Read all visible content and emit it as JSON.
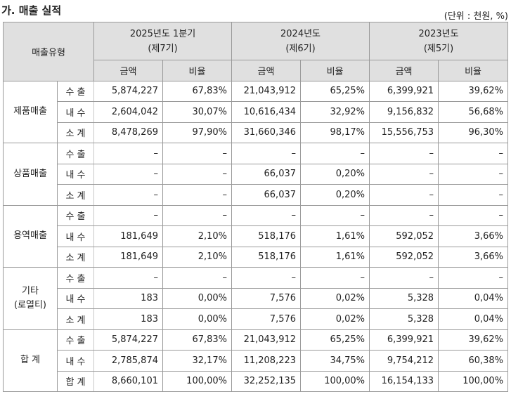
{
  "title": "가. 매출 실적",
  "unit": "(단위 : 천원, %)",
  "header": {
    "type_label": "매출유형",
    "periods": [
      {
        "line1": "2025년도 1분기",
        "line2": "(제7기)"
      },
      {
        "line1": "2024년도",
        "line2": "(제6기)"
      },
      {
        "line1": "2023년도",
        "line2": "(제5기)"
      }
    ],
    "amount_label": "금액",
    "ratio_label": "비율"
  },
  "groups": [
    {
      "category": "제품매출",
      "rows": [
        {
          "sub": "수 출",
          "values": [
            "5,874,227",
            "67,83%",
            "21,043,912",
            "65,25%",
            "6,399,921",
            "39,62%"
          ]
        },
        {
          "sub": "내 수",
          "values": [
            "2,604,042",
            "30,07%",
            "10,616,434",
            "32,92%",
            "9,156,832",
            "56,68%"
          ]
        },
        {
          "sub": "소 계",
          "values": [
            "8,478,269",
            "97,90%",
            "31,660,346",
            "98,17%",
            "15,556,753",
            "96,30%"
          ]
        }
      ]
    },
    {
      "category": "상품매출",
      "rows": [
        {
          "sub": "수 출",
          "values": [
            "–",
            "–",
            "–",
            "–",
            "–",
            "–"
          ]
        },
        {
          "sub": "내 수",
          "values": [
            "–",
            "–",
            "66,037",
            "0,20%",
            "–",
            "–"
          ]
        },
        {
          "sub": "소 계",
          "values": [
            "–",
            "–",
            "66,037",
            "0,20%",
            "–",
            "–"
          ]
        }
      ]
    },
    {
      "category": "용역매출",
      "rows": [
        {
          "sub": "수 출",
          "values": [
            "–",
            "–",
            "–",
            "–",
            "–",
            "–"
          ]
        },
        {
          "sub": "내 수",
          "values": [
            "181,649",
            "2,10%",
            "518,176",
            "1,61%",
            "592,052",
            "3,66%"
          ]
        },
        {
          "sub": "소 계",
          "values": [
            "181,649",
            "2,10%",
            "518,176",
            "1,61%",
            "592,052",
            "3,66%"
          ]
        }
      ]
    },
    {
      "category": "기타",
      "category2": "(로열티)",
      "rows": [
        {
          "sub": "수 출",
          "values": [
            "–",
            "–",
            "–",
            "–",
            "–",
            "–"
          ]
        },
        {
          "sub": "내 수",
          "values": [
            "183",
            "0,00%",
            "7,576",
            "0,02%",
            "5,328",
            "0,04%"
          ]
        },
        {
          "sub": "소 계",
          "values": [
            "183",
            "0,00%",
            "7,576",
            "0,02%",
            "5,328",
            "0,04%"
          ]
        }
      ]
    },
    {
      "category": "합 계",
      "rows": [
        {
          "sub": "수 출",
          "values": [
            "5,874,227",
            "67,83%",
            "21,043,912",
            "65,25%",
            "6,399,921",
            "39,62%"
          ]
        },
        {
          "sub": "내 수",
          "values": [
            "2,785,874",
            "32,17%",
            "11,208,223",
            "34,75%",
            "9,754,212",
            "60,38%"
          ]
        },
        {
          "sub": "합 계",
          "values": [
            "8,660,101",
            "100,00%",
            "32,252,135",
            "100,00%",
            "16,154,133",
            "100,00%"
          ]
        }
      ]
    }
  ]
}
